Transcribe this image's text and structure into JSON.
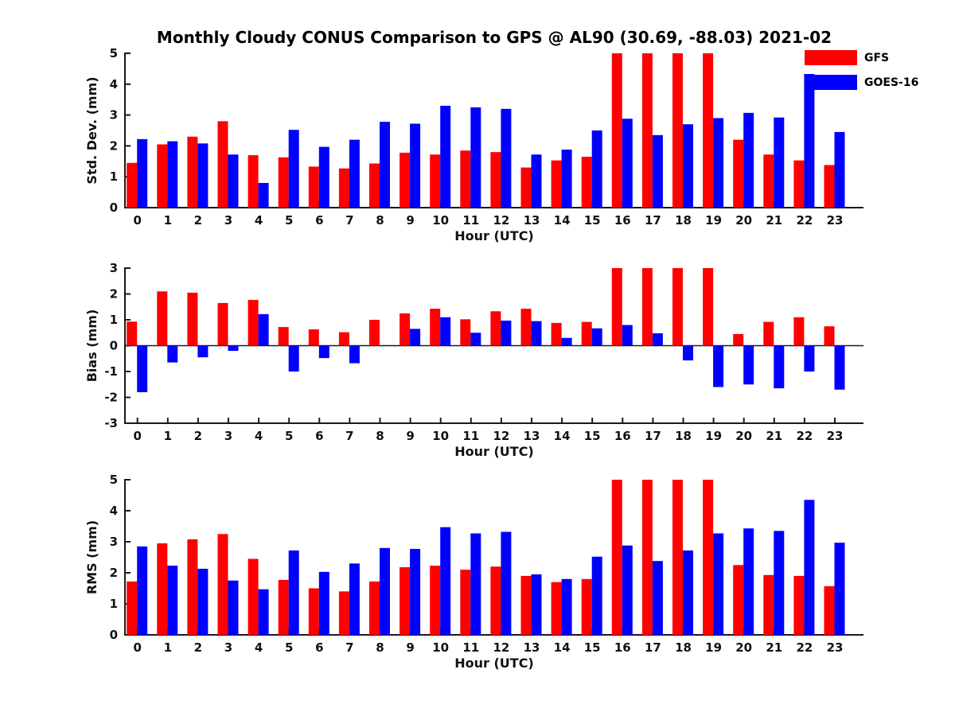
{
  "title": "Monthly Cloudy CONUS Comparison to GPS @ AL90 (30.69, -88.03) 2021-02",
  "legend": {
    "position": "top-right",
    "items": [
      {
        "label": "GFS",
        "color": "#ff0000"
      },
      {
        "label": "GOES-16",
        "color": "#0000ff"
      }
    ]
  },
  "colors": {
    "gfs": "#ff0000",
    "goes16": "#0000ff",
    "axis": "#1a1a1a",
    "background": "#ffffff"
  },
  "chart_data": [
    {
      "type": "bar",
      "title": "",
      "xlabel": "Hour (UTC)",
      "ylabel": "Std. Dev. (mm)",
      "ylim": [
        0,
        5
      ],
      "yticks": [
        0,
        1,
        2,
        3,
        4,
        5
      ],
      "grid": false,
      "categories": [
        "0",
        "1",
        "2",
        "3",
        "4",
        "5",
        "6",
        "7",
        "8",
        "9",
        "10",
        "11",
        "12",
        "13",
        "14",
        "15",
        "16",
        "17",
        "18",
        "19",
        "20",
        "21",
        "22",
        "23"
      ],
      "series": [
        {
          "name": "GFS",
          "color": "#ff0000",
          "values": [
            1.45,
            2.05,
            2.3,
            2.8,
            1.7,
            1.63,
            1.33,
            1.27,
            1.43,
            1.78,
            1.72,
            1.85,
            1.8,
            1.3,
            1.53,
            1.65,
            5.0,
            5.0,
            5.0,
            5.0,
            2.2,
            1.72,
            1.53,
            1.38
          ]
        },
        {
          "name": "GOES-16",
          "color": "#0000ff",
          "values": [
            2.22,
            2.15,
            2.08,
            1.72,
            0.8,
            2.52,
            1.97,
            2.2,
            2.78,
            2.72,
            3.3,
            3.25,
            3.2,
            1.72,
            1.88,
            2.5,
            2.88,
            2.35,
            2.7,
            2.9,
            3.07,
            2.92,
            4.33,
            2.45
          ]
        }
      ]
    },
    {
      "type": "bar",
      "title": "",
      "xlabel": "Hour (UTC)",
      "ylabel": "Bias (mm)",
      "ylim": [
        -3,
        3
      ],
      "yticks": [
        -3,
        -2,
        -1,
        0,
        1,
        2,
        3
      ],
      "grid": false,
      "categories": [
        "0",
        "1",
        "2",
        "3",
        "4",
        "5",
        "6",
        "7",
        "8",
        "9",
        "10",
        "11",
        "12",
        "13",
        "14",
        "15",
        "16",
        "17",
        "18",
        "19",
        "20",
        "21",
        "22",
        "23"
      ],
      "series": [
        {
          "name": "GFS",
          "color": "#ff0000",
          "values": [
            0.93,
            2.1,
            2.05,
            1.65,
            1.77,
            0.72,
            0.63,
            0.52,
            1.0,
            1.25,
            1.43,
            1.02,
            1.33,
            1.43,
            0.88,
            0.92,
            3.0,
            3.0,
            3.0,
            3.0,
            0.45,
            0.92,
            1.1,
            0.75
          ]
        },
        {
          "name": "GOES-16",
          "color": "#0000ff",
          "values": [
            -1.8,
            -0.65,
            -0.45,
            -0.2,
            1.22,
            -1.0,
            -0.48,
            -0.68,
            0.0,
            0.65,
            1.1,
            0.5,
            0.97,
            0.95,
            0.3,
            0.67,
            0.8,
            0.48,
            -0.57,
            -1.6,
            -1.5,
            -1.65,
            -1.0,
            -1.7
          ]
        }
      ]
    },
    {
      "type": "bar",
      "title": "",
      "xlabel": "Hour (UTC)",
      "ylabel": "RMS (mm)",
      "ylim": [
        0,
        5
      ],
      "yticks": [
        0,
        1,
        2,
        3,
        4,
        5
      ],
      "grid": false,
      "categories": [
        "0",
        "1",
        "2",
        "3",
        "4",
        "5",
        "6",
        "7",
        "8",
        "9",
        "10",
        "11",
        "12",
        "13",
        "14",
        "15",
        "16",
        "17",
        "18",
        "19",
        "20",
        "21",
        "22",
        "23"
      ],
      "series": [
        {
          "name": "GFS",
          "color": "#ff0000",
          "values": [
            1.72,
            2.95,
            3.08,
            3.25,
            2.45,
            1.77,
            1.5,
            1.4,
            1.72,
            2.18,
            2.23,
            2.1,
            2.2,
            1.9,
            1.7,
            1.8,
            5.0,
            5.0,
            5.0,
            5.0,
            2.25,
            1.93,
            1.9,
            1.57
          ]
        },
        {
          "name": "GOES-16",
          "color": "#0000ff",
          "values": [
            2.85,
            2.23,
            2.13,
            1.75,
            1.47,
            2.72,
            2.03,
            2.3,
            2.8,
            2.77,
            3.47,
            3.27,
            3.32,
            1.95,
            1.8,
            2.52,
            2.88,
            2.38,
            2.72,
            3.27,
            3.43,
            3.35,
            4.35,
            2.97
          ]
        }
      ]
    }
  ]
}
